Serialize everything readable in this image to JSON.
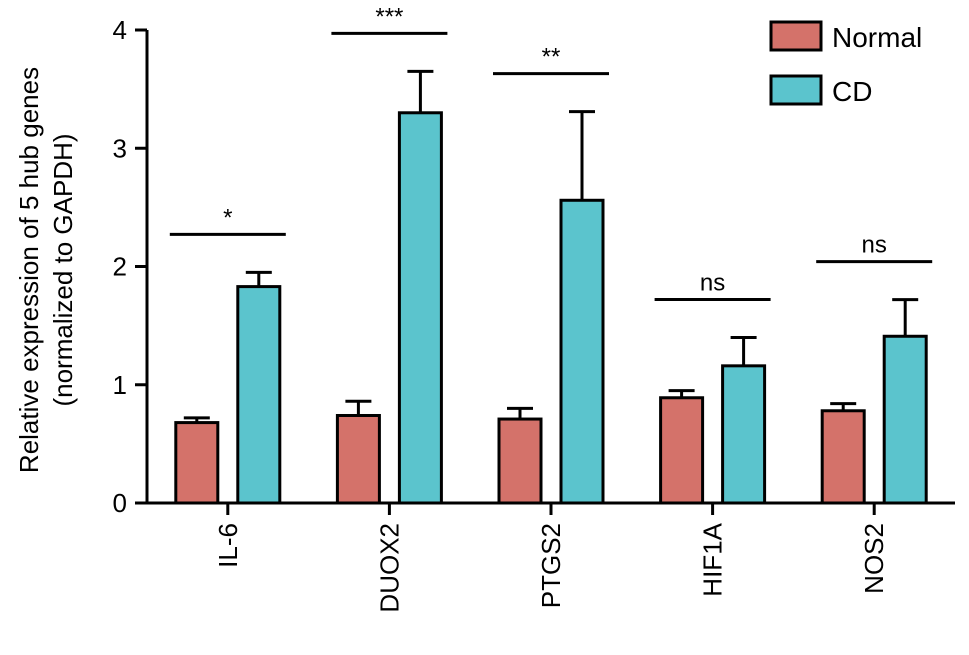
{
  "chart_data": {
    "type": "bar",
    "ylabel_line1": "Relative expression of 5 hub genes",
    "ylabel_line2": "(normalized to GAPDH)",
    "ylim": [
      0,
      4
    ],
    "yticks": [
      0,
      1,
      2,
      3,
      4
    ],
    "categories": [
      "IL-6",
      "DUOX2",
      "PTGS2",
      "HIF1A",
      "NOS2"
    ],
    "series": [
      {
        "name": "Normal",
        "color": "#d4726a",
        "values": [
          0.68,
          0.74,
          0.71,
          0.89,
          0.78
        ],
        "errors": [
          0.04,
          0.12,
          0.09,
          0.06,
          0.06
        ]
      },
      {
        "name": "CD",
        "color": "#5bc4cd",
        "values": [
          1.83,
          3.3,
          2.56,
          1.16,
          1.41
        ],
        "errors": [
          0.12,
          0.35,
          0.75,
          0.24,
          0.31
        ]
      }
    ],
    "significance": [
      "*",
      "***",
      "**",
      "ns",
      "ns"
    ],
    "legend_position": "top-right",
    "grid": false
  }
}
